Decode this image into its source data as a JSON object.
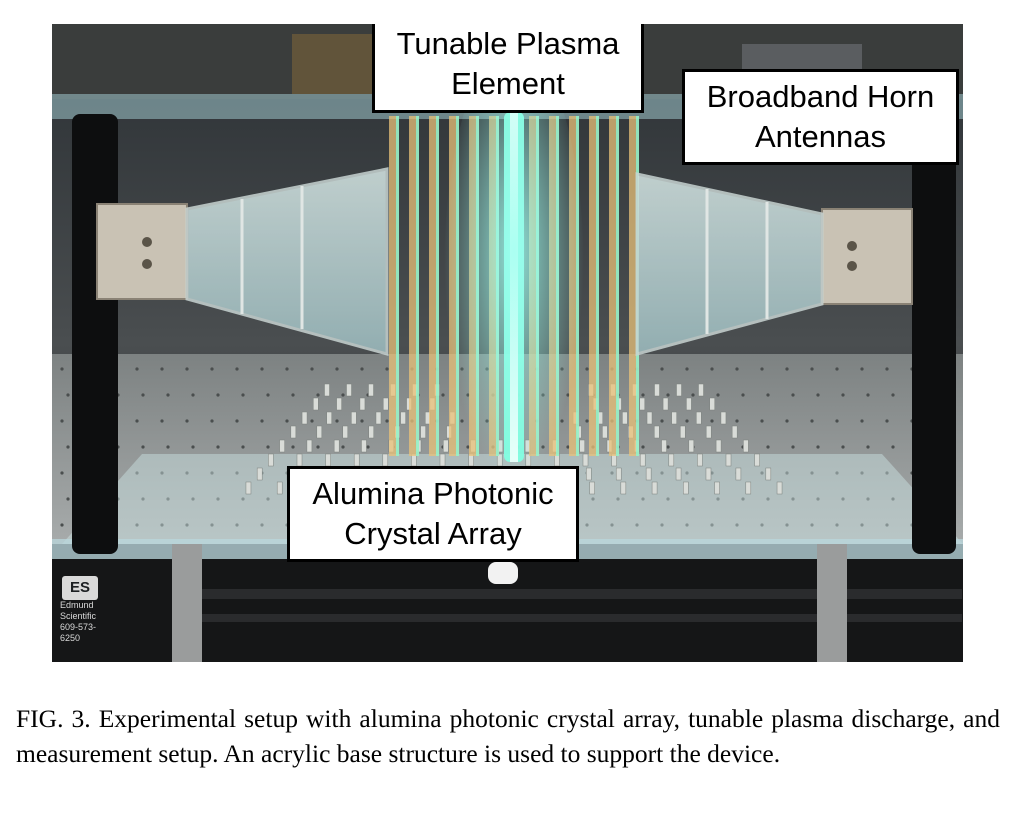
{
  "figure": {
    "callouts": {
      "plasma_element": [
        "Tunable Plasma",
        "Element"
      ],
      "horn_antennas": [
        "Broadband Horn",
        "Antennas"
      ],
      "crystal_array": [
        "Alumina Photonic",
        "Crystal Array"
      ]
    },
    "logo": {
      "mark": "ES",
      "lines": [
        "Edmund",
        "Scientific",
        "609-573-6250"
      ]
    },
    "colors": {
      "plasma_glow": "#7fffe0",
      "rod_amber": "#e8c27a",
      "acrylic": "#b9d7dc",
      "aluminum": "#c9c2b4",
      "background_dark": "#1c1f22"
    }
  },
  "caption": {
    "text": "FIG. 3. Experimental setup with alumina photonic crystal array, tunable plasma discharge, and measurement setup. An acrylic base structure is used to support the device."
  }
}
